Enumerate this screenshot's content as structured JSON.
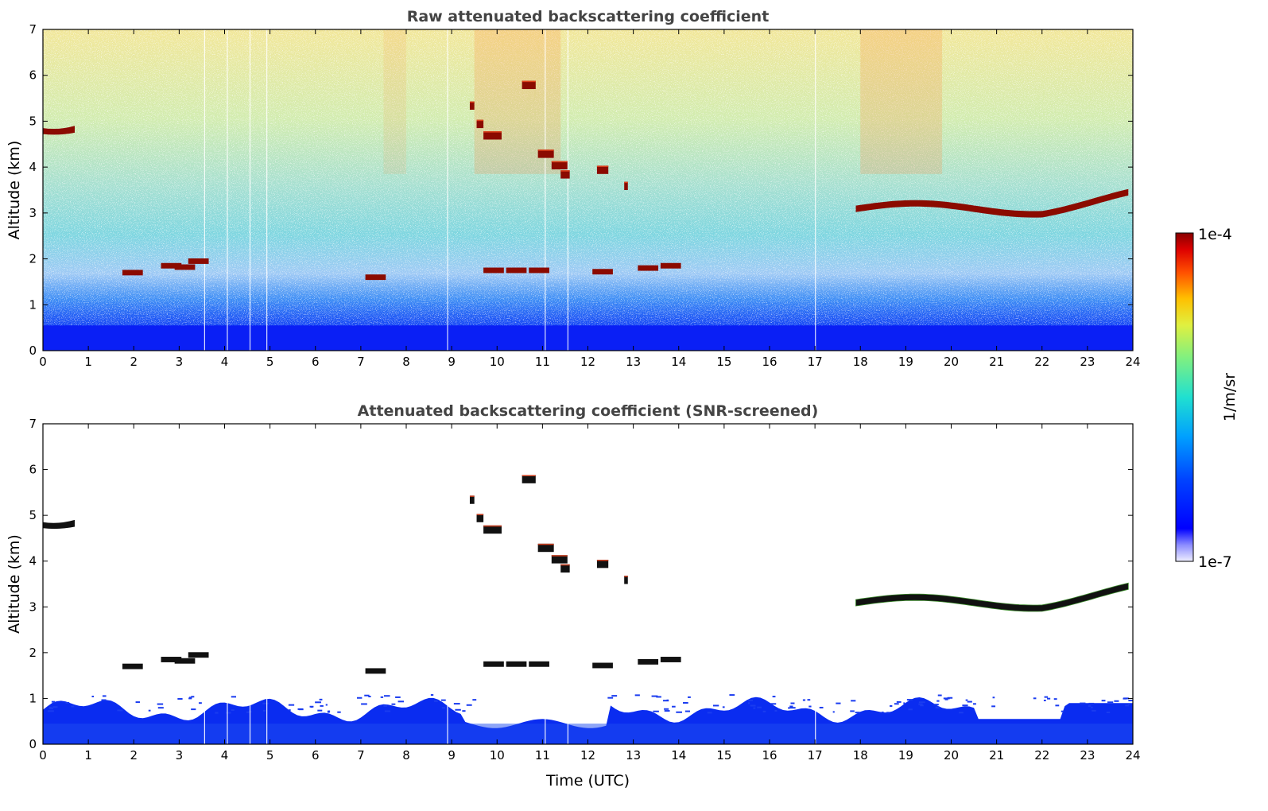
{
  "chart_data": [
    {
      "type": "heatmap",
      "title": "Raw attenuated backscattering coefficient",
      "xlabel": "",
      "ylabel": "Altitude (km)",
      "xlim": [
        0,
        24
      ],
      "ylim": [
        0,
        7
      ],
      "xticks": [
        0,
        1,
        2,
        3,
        4,
        5,
        6,
        7,
        8,
        9,
        10,
        11,
        12,
        13,
        14,
        15,
        16,
        17,
        18,
        19,
        20,
        21,
        22,
        23,
        24
      ],
      "yticks": [
        0,
        1,
        2,
        3,
        4,
        5,
        6,
        7
      ],
      "features": [
        {
          "label": "cloud layer 0-0.7 UTC",
          "x": [
            0.0,
            0.7
          ],
          "altitude_km": 4.8
        },
        {
          "label": "cloud layer 18-24 UTC",
          "x": [
            18.0,
            24.0
          ],
          "altitude_km": [
            3.05,
            3.4
          ]
        },
        {
          "label": "cloud layer 1.8-3.5 UTC",
          "x": [
            1.8,
            3.5
          ],
          "altitude_km": 1.8
        },
        {
          "label": "cloud layer 9.6-12.3 UTC",
          "x": [
            9.6,
            12.3
          ],
          "altitude_km": [
            5.5,
            3.8
          ]
        }
      ]
    },
    {
      "type": "heatmap",
      "title": "Attenuated backscattering coefficient (SNR-screened)",
      "xlabel": "Time (UTC)",
      "ylabel": "Altitude (km)",
      "xlim": [
        0,
        24
      ],
      "ylim": [
        0,
        7
      ],
      "xticks": [
        0,
        1,
        2,
        3,
        4,
        5,
        6,
        7,
        8,
        9,
        10,
        11,
        12,
        13,
        14,
        15,
        16,
        17,
        18,
        19,
        20,
        21,
        22,
        23,
        24
      ],
      "yticks": [
        0,
        1,
        2,
        3,
        4,
        5,
        6,
        7
      ]
    }
  ],
  "colorbar": {
    "label": "1/m/sr",
    "max_label": "1e-4",
    "min_label": "1e-7",
    "scale": "log",
    "colormap": "jet"
  }
}
